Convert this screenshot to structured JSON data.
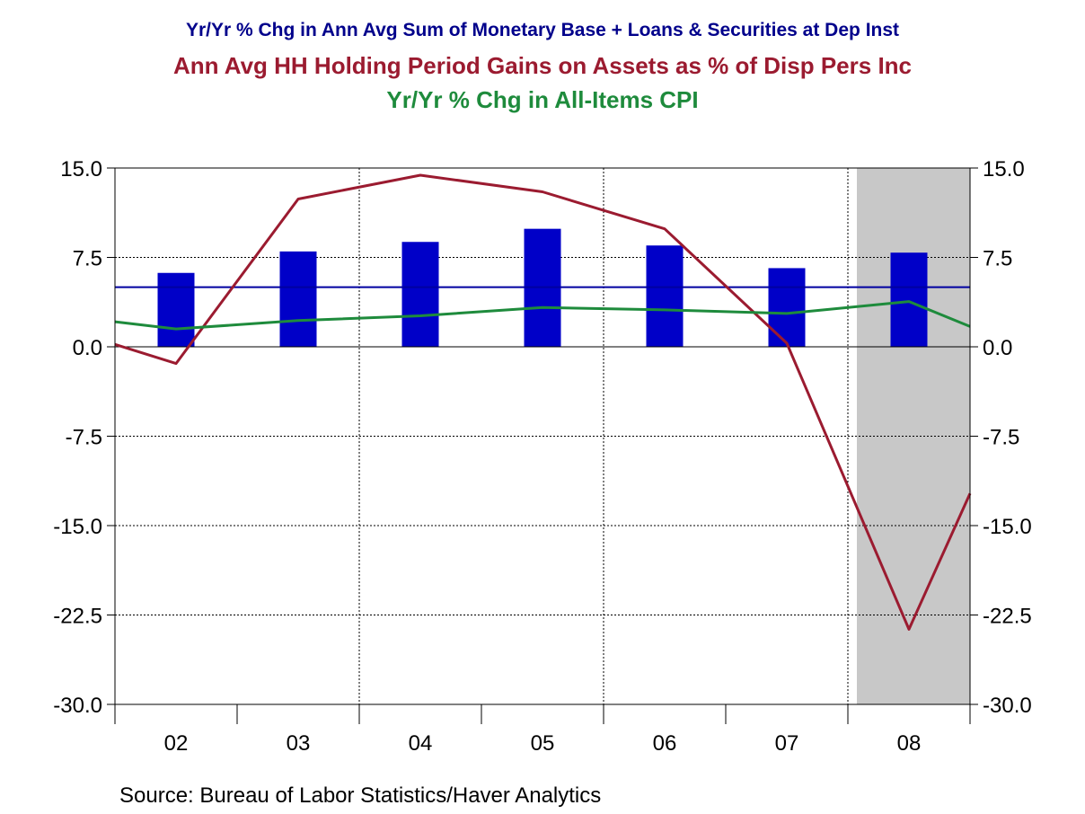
{
  "titles": {
    "line1": "Yr/Yr % Chg in Ann Avg Sum of Monetary Base + Loans & Securities at Dep Inst",
    "line2": "Ann Avg HH Holding Period Gains on Assets as % of Disp Pers Inc",
    "line3": "Yr/Yr % Chg in All-Items CPI"
  },
  "source": "Source:  Bureau of Labor Statistics/Haver Analytics",
  "colors": {
    "line1": "#00008B",
    "line2": "#9B1B30",
    "line3": "#1E8B3C",
    "bars": "#0000C8",
    "refline": "#0000A0",
    "shade": "#C8C8C8"
  },
  "chart_data": {
    "type": "bar",
    "x_categories": [
      "02",
      "03",
      "04",
      "05",
      "06",
      "07",
      "08"
    ],
    "ylim": [
      -30.0,
      15.0
    ],
    "y_ticks": [
      "15.0",
      "7.5",
      "0.0",
      "-7.5",
      "-15.0",
      "-22.5",
      "-30.0"
    ],
    "y_tick_values": [
      15.0,
      7.5,
      0.0,
      -7.5,
      -15.0,
      -22.5,
      -30.0
    ],
    "shaded_category": "08",
    "reference_line": 5.0,
    "series": [
      {
        "type": "bar",
        "values": [
          6.2,
          8.0,
          8.8,
          9.9,
          8.5,
          6.6,
          7.9
        ]
      },
      {
        "type": "line",
        "points": [
          {
            "t": 2001.5,
            "y": 0.2
          },
          {
            "t": 2002.0,
            "y": -1.4
          },
          {
            "t": 2003.0,
            "y": 12.4
          },
          {
            "t": 2004.0,
            "y": 14.4
          },
          {
            "t": 2005.0,
            "y": 13.0
          },
          {
            "t": 2006.0,
            "y": 9.9
          },
          {
            "t": 2007.0,
            "y": 0.3
          },
          {
            "t": 2008.0,
            "y": -23.7
          },
          {
            "t": 2008.5,
            "y": -12.3
          }
        ]
      },
      {
        "type": "line",
        "points": [
          {
            "t": 2001.5,
            "y": 2.1
          },
          {
            "t": 2002.0,
            "y": 1.5
          },
          {
            "t": 2003.0,
            "y": 2.2
          },
          {
            "t": 2004.0,
            "y": 2.6
          },
          {
            "t": 2005.0,
            "y": 3.3
          },
          {
            "t": 2006.0,
            "y": 3.1
          },
          {
            "t": 2007.0,
            "y": 2.8
          },
          {
            "t": 2008.0,
            "y": 3.8
          },
          {
            "t": 2008.5,
            "y": 1.7
          }
        ]
      }
    ]
  }
}
